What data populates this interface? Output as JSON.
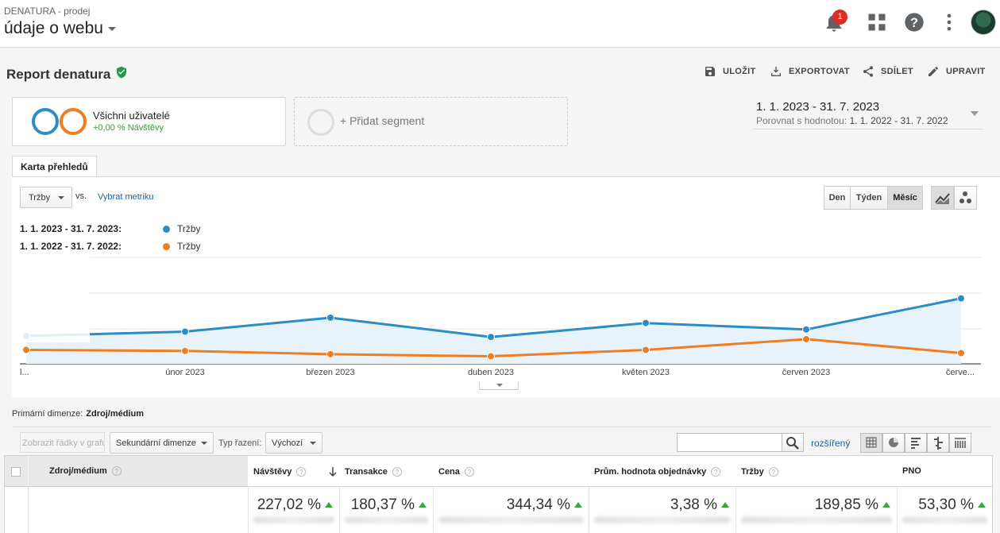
{
  "header": {
    "account_path": "DENATURA - prodej",
    "view_name": "údaje o webu",
    "notification_count": "1"
  },
  "report": {
    "title": "Report denatura",
    "actions": {
      "save": "ULOŽIT",
      "export": "EXPORTOVAT",
      "share": "SDÍLET",
      "edit": "UPRAVIT"
    }
  },
  "segments": {
    "active_name": "Všichni uživatelé",
    "active_sub": "+0,00 % Návštěvy",
    "add_label": "+ Přidat segment"
  },
  "date_range": {
    "main": "1. 1. 2023 - 31. 7. 2023",
    "compare_label": "Porovnat s hodnotou:",
    "compare_value": "1. 1. 2022 - 31. 7. 2022"
  },
  "tabs": {
    "overview": "Karta přehledů"
  },
  "chart_controls": {
    "metric": "Tržby",
    "vs": "vs.",
    "pick_metric": "Vybrat metriku",
    "granularity": [
      "Den",
      "Týden",
      "Měsíc"
    ],
    "granularity_selected": "Měsíc"
  },
  "legend": [
    {
      "range": "1. 1. 2023 - 31. 7. 2023:",
      "name": "Tržby",
      "color": "#2b8cc8"
    },
    {
      "range": "1. 1. 2022 - 31. 7. 2022:",
      "name": "Tržby",
      "color": "#ef7d22"
    }
  ],
  "chart_data": {
    "type": "line",
    "categories": [
      "l...",
      "únor 2023",
      "březen 2023",
      "duben 2023",
      "květen 2023",
      "červen 2023",
      "červe..."
    ],
    "series": [
      {
        "name": "Tržby",
        "color": "#2b8cc8",
        "values": [
          0.26,
          0.3,
          0.43,
          0.25,
          0.38,
          0.32,
          0.61
        ]
      },
      {
        "name": "Tržby",
        "color": "#ef7d22",
        "values": [
          0.13,
          0.12,
          0.09,
          0.07,
          0.13,
          0.23,
          0.1
        ]
      }
    ],
    "ylim": [
      0,
      1
    ],
    "grid": true
  },
  "table_toolbar": {
    "primary_dimension_label": "Primární dimenze:",
    "primary_dimension_value": "Zdroj/médium",
    "plot_rows": "Zobrazit řádky v grafu",
    "secondary_dimension": "Sekundární dimenze",
    "sort_label": "Typ řazení:",
    "sort_value": "Výchozí",
    "advanced": "rozšířený"
  },
  "table": {
    "columns": [
      "Zdroj/médium",
      "Návštěvy",
      "Transakce",
      "Cena",
      "Prům. hodnota objednávky",
      "Tržby",
      "PNO"
    ],
    "summary": [
      "227,02 %",
      "180,37 %",
      "344,34 %",
      "3,38 %",
      "189,85 %",
      "53,30 %"
    ]
  }
}
